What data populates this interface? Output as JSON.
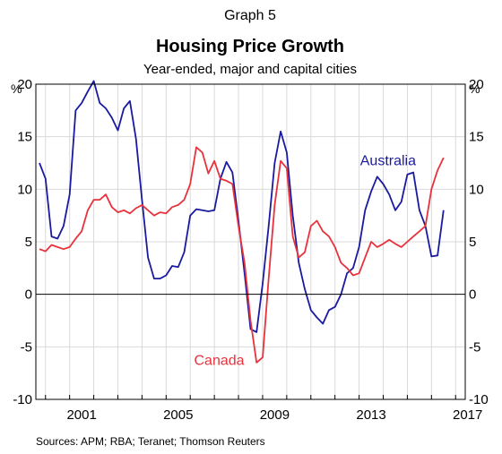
{
  "header": {
    "graph_number": "Graph 5",
    "title": "Housing Price Growth",
    "subtitle": "Year-ended, major and capital cities"
  },
  "footer": {
    "sources": "Sources:   APM; RBA; Teranet; Thomson Reuters"
  },
  "chart_data": {
    "type": "line",
    "ylabel_left": "%",
    "ylabel_right": "%",
    "ylim": [
      -10,
      20
    ],
    "xlim": [
      1999.6,
      2017.4
    ],
    "y_ticks": [
      -10,
      -5,
      0,
      5,
      10,
      15,
      20
    ],
    "x_ticks": [
      2001,
      2005,
      2009,
      2013,
      2017
    ],
    "grid": true,
    "colors": {
      "Australia": "#1a1aa0",
      "Canada": "#e8323c",
      "grid": "#d9d9d9",
      "zero_line": "#000000"
    },
    "series": [
      {
        "name": "Australia",
        "label_position": "upper-right",
        "x": [
          1999.75,
          2000.0,
          2000.25,
          2000.5,
          2000.75,
          2001.0,
          2001.25,
          2001.5,
          2001.75,
          2002.0,
          2002.25,
          2002.5,
          2002.75,
          2003.0,
          2003.25,
          2003.5,
          2003.75,
          2004.0,
          2004.25,
          2004.5,
          2004.75,
          2005.0,
          2005.25,
          2005.5,
          2005.75,
          2006.0,
          2006.25,
          2006.5,
          2006.75,
          2007.0,
          2007.25,
          2007.5,
          2007.75,
          2008.0,
          2008.25,
          2008.5,
          2008.75,
          2009.0,
          2009.25,
          2009.5,
          2009.75,
          2010.0,
          2010.25,
          2010.5,
          2010.75,
          2011.0,
          2011.25,
          2011.5,
          2011.75,
          2012.0,
          2012.25,
          2012.5,
          2012.75,
          2013.0,
          2013.25,
          2013.5,
          2013.75,
          2014.0,
          2014.25,
          2014.5,
          2014.75,
          2015.0,
          2015.25,
          2015.5,
          2015.75,
          2016.0,
          2016.25,
          2016.5
        ],
        "values": [
          12.5,
          11.0,
          5.5,
          5.3,
          6.5,
          9.5,
          17.5,
          18.2,
          19.3,
          20.3,
          18.2,
          17.7,
          16.8,
          15.6,
          17.7,
          18.4,
          14.8,
          9.0,
          3.5,
          1.5,
          1.5,
          1.8,
          2.7,
          2.6,
          4.0,
          7.5,
          8.1,
          8.0,
          7.9,
          8.0,
          11.0,
          12.6,
          11.6,
          7.0,
          2.0,
          -3.3,
          -3.6,
          1.0,
          6.5,
          12.5,
          15.5,
          13.5,
          7.5,
          3.0,
          0.5,
          -1.5,
          -2.2,
          -2.8,
          -1.5,
          -1.2,
          0.0,
          2.0,
          2.5,
          4.5,
          8.0,
          9.8,
          11.2,
          10.5,
          9.5,
          8.0,
          8.8,
          11.4,
          11.6,
          8.0,
          6.5,
          3.6,
          3.7,
          8.0
        ]
      },
      {
        "name": "Canada",
        "label_position": "lower-middle",
        "x": [
          1999.75,
          2000.0,
          2000.25,
          2000.5,
          2000.75,
          2001.0,
          2001.25,
          2001.5,
          2001.75,
          2002.0,
          2002.25,
          2002.5,
          2002.75,
          2003.0,
          2003.25,
          2003.5,
          2003.75,
          2004.0,
          2004.25,
          2004.5,
          2004.75,
          2005.0,
          2005.25,
          2005.5,
          2005.75,
          2006.0,
          2006.25,
          2006.5,
          2006.75,
          2007.0,
          2007.25,
          2007.5,
          2007.75,
          2008.0,
          2008.25,
          2008.5,
          2008.75,
          2009.0,
          2009.25,
          2009.5,
          2009.75,
          2010.0,
          2010.25,
          2010.5,
          2010.75,
          2011.0,
          2011.25,
          2011.5,
          2011.75,
          2012.0,
          2012.25,
          2012.5,
          2012.75,
          2013.0,
          2013.25,
          2013.5,
          2013.75,
          2014.0,
          2014.25,
          2014.5,
          2014.75,
          2015.0,
          2015.25,
          2015.5,
          2015.75,
          2016.0,
          2016.25,
          2016.5
        ],
        "values": [
          4.3,
          4.1,
          4.7,
          4.5,
          4.3,
          4.5,
          5.3,
          6.0,
          8.0,
          9.0,
          9.0,
          9.5,
          8.3,
          7.8,
          8.0,
          7.7,
          8.2,
          8.5,
          8.0,
          7.5,
          7.8,
          7.7,
          8.3,
          8.5,
          9.0,
          10.5,
          14.0,
          13.5,
          11.5,
          12.7,
          11.0,
          10.8,
          10.5,
          6.5,
          3.0,
          -2.5,
          -6.5,
          -6.0,
          1.5,
          8.5,
          12.7,
          12.0,
          5.5,
          3.5,
          4.0,
          6.5,
          7.0,
          6.0,
          5.5,
          4.5,
          3.0,
          2.5,
          1.8,
          2.0,
          3.5,
          5.0,
          4.5,
          4.8,
          5.2,
          4.8,
          4.5,
          5.0,
          5.5,
          6.0,
          6.5,
          10.0,
          11.8,
          13.0
        ]
      }
    ]
  }
}
